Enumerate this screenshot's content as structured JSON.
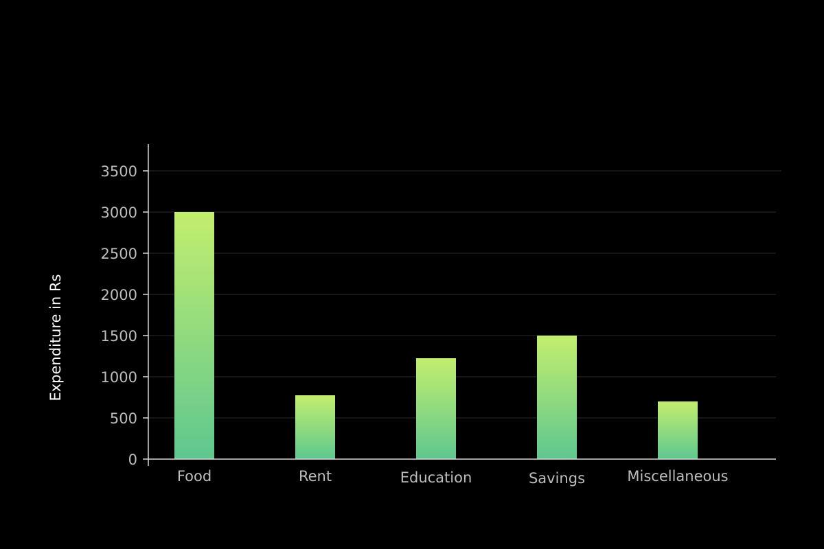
{
  "chart_data": {
    "type": "bar",
    "categories": [
      "Food",
      "Rent",
      "Education",
      "Savings",
      "Miscellaneous"
    ],
    "values": [
      3000,
      775,
      1225,
      1500,
      700
    ],
    "title": "",
    "xlabel": "",
    "ylabel": "Expenditure in Rs",
    "ylim": [
      0,
      3800
    ],
    "yticks": [
      0,
      500,
      1000,
      1500,
      2000,
      2500,
      3000,
      3500
    ],
    "grid": true,
    "legend": "none",
    "colors": {
      "background": "#000000",
      "bar_top": "#c3ee6e",
      "bar_bottom": "#5ec78f",
      "tick_text": "#bdbdbd",
      "axis_title": "#ffffff",
      "grid": "#2b2b2b",
      "axis": "#d9d9d9"
    }
  }
}
